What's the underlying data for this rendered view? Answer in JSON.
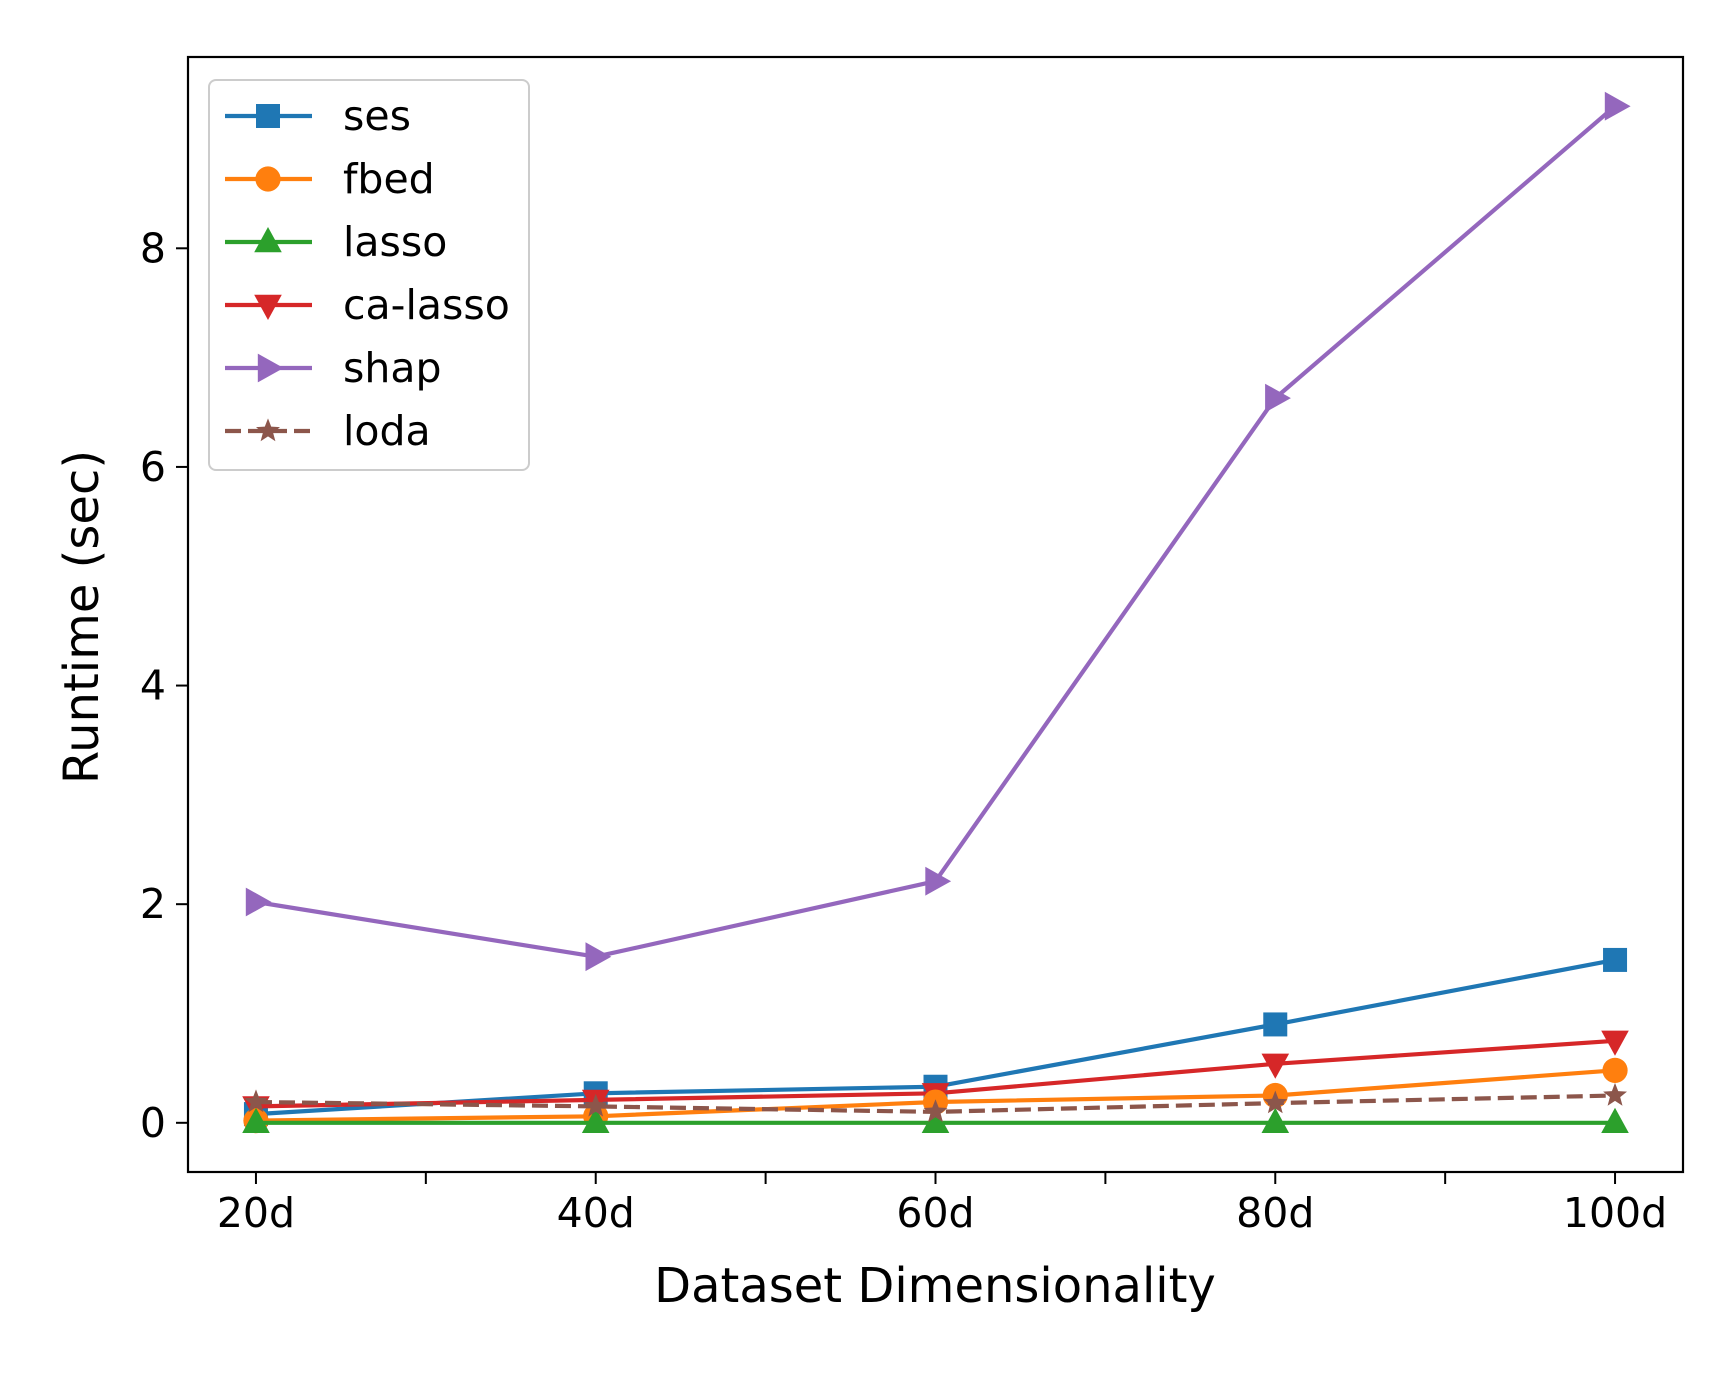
{
  "chart_data": {
    "type": "line",
    "title": "",
    "xlabel": "Dataset Dimensionality",
    "ylabel": "Runtime (sec)",
    "categories": [
      "20d",
      "40d",
      "60d",
      "80d",
      "100d"
    ],
    "x": [
      20,
      40,
      60,
      80,
      100
    ],
    "xlim": [
      16,
      104
    ],
    "ylim": [
      -0.45,
      9.75
    ],
    "yticks": [
      0,
      2,
      4,
      6,
      8
    ],
    "xticks_major": [
      20,
      40,
      60,
      80,
      100
    ],
    "xticks_minor": [
      30,
      50,
      70,
      90
    ],
    "grid": false,
    "legend_position": "upper left",
    "series": [
      {
        "name": "ses",
        "color": "#1f77b4",
        "marker": "square",
        "linestyle": "solid",
        "values": [
          0.08,
          0.27,
          0.33,
          0.9,
          1.49
        ]
      },
      {
        "name": "fbed",
        "color": "#ff7f0e",
        "marker": "circle",
        "linestyle": "solid",
        "values": [
          0.02,
          0.06,
          0.19,
          0.25,
          0.48
        ]
      },
      {
        "name": "lasso",
        "color": "#2ca02c",
        "marker": "triangle-up",
        "linestyle": "solid",
        "values": [
          0.0,
          0.0,
          0.0,
          0.0,
          0.0
        ]
      },
      {
        "name": "ca-lasso",
        "color": "#d62728",
        "marker": "triangle-down",
        "linestyle": "solid",
        "values": [
          0.15,
          0.21,
          0.27,
          0.54,
          0.75
        ]
      },
      {
        "name": "shap",
        "color": "#9467bd",
        "marker": "triangle-right",
        "linestyle": "solid",
        "values": [
          2.02,
          1.52,
          2.21,
          6.63,
          9.3
        ]
      },
      {
        "name": "loda",
        "color": "#8c564b",
        "marker": "star",
        "linestyle": "dashed",
        "values": [
          0.19,
          0.15,
          0.1,
          0.18,
          0.25
        ]
      }
    ]
  }
}
